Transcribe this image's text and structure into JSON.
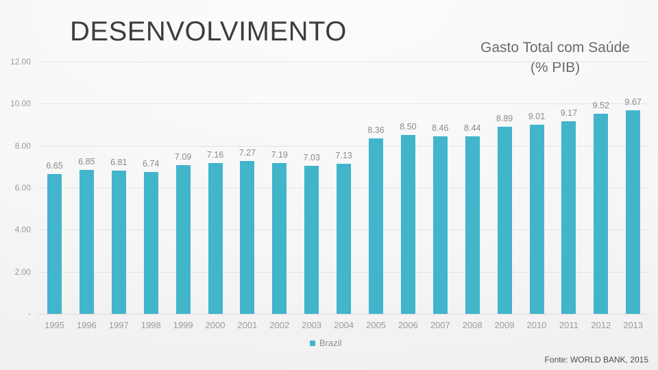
{
  "page": {
    "title": "DESENVOLVIMENTO"
  },
  "chart": {
    "title_line1": "Gasto Total com Saúde",
    "title_line2": "(% PIB)"
  },
  "footer": {
    "source": "Fonte: WORLD BANK, 2015"
  },
  "colors": {
    "bar": "#42B4CC",
    "title_text": "#3d3d3d",
    "chart_title_text": "#6a6a6a",
    "axis_text": "#9a9a9a",
    "data_label_text": "#8a8a8a",
    "gridline": "#e3e3e3",
    "source_text": "#4c4c4c"
  },
  "chart_data": {
    "type": "bar",
    "title": "Gasto Total com Saúde (% PIB)",
    "categories": [
      "1995",
      "1996",
      "1997",
      "1998",
      "1999",
      "2000",
      "2001",
      "2002",
      "2003",
      "2004",
      "2005",
      "2006",
      "2007",
      "2008",
      "2009",
      "2010",
      "2011",
      "2012",
      "2013"
    ],
    "series": [
      {
        "name": "Brazil",
        "values": [
          6.65,
          6.85,
          6.81,
          6.74,
          7.09,
          7.16,
          7.27,
          7.19,
          7.03,
          7.13,
          8.36,
          8.5,
          8.46,
          8.44,
          8.89,
          9.01,
          9.17,
          9.52,
          9.67
        ]
      }
    ],
    "value_labels": [
      "6.65",
      "6.85",
      "6.81",
      "6.74",
      "7.09",
      "7.16",
      "7.27",
      "7.19",
      "7.03",
      "7.13",
      "8.36",
      "8.50",
      "8.46",
      "8.44",
      "8.89",
      "9.01",
      "9.17",
      "9.52",
      "9.67"
    ],
    "y_ticks": [
      {
        "label": "12.00",
        "value": 12
      },
      {
        "label": "10.00",
        "value": 10
      },
      {
        "label": "8.00",
        "value": 8
      },
      {
        "label": "6.00",
        "value": 6
      },
      {
        "label": "4.00",
        "value": 4
      },
      {
        "label": "2.00",
        "value": 2
      },
      {
        "label": "-",
        "value": 0
      }
    ],
    "ylim": [
      0,
      12
    ],
    "grid": true,
    "legend_position": "bottom",
    "xlabel": "",
    "ylabel": ""
  }
}
